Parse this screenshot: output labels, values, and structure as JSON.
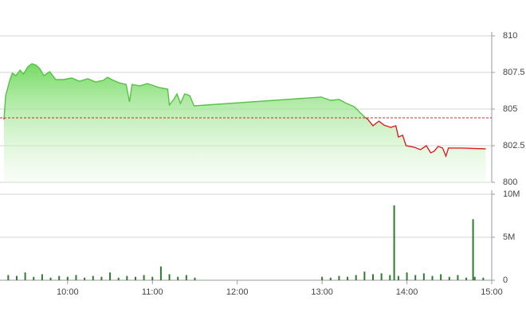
{
  "chart_data": [
    {
      "type": "area",
      "x": [
        9.25,
        9.27,
        9.32,
        9.35,
        9.39,
        9.44,
        9.48,
        9.53,
        9.58,
        9.63,
        9.67,
        9.72,
        9.79,
        9.86,
        9.95,
        10.05,
        10.14,
        10.24,
        10.33,
        10.42,
        10.47,
        10.52,
        10.61,
        10.69,
        10.73,
        10.76,
        10.85,
        10.94,
        11.08,
        11.18,
        11.2,
        11.25,
        11.29,
        11.33,
        11.38,
        11.44,
        11.49,
        12.99,
        13.1,
        13.2,
        13.29,
        13.38,
        13.48,
        13.54,
        13.6,
        13.67,
        13.73,
        13.81,
        13.87,
        13.9,
        13.95,
        13.99,
        14.09,
        14.16,
        14.23,
        14.28,
        14.32,
        14.37,
        14.42,
        14.46,
        14.49,
        14.65,
        14.93
      ],
      "values": [
        804.29,
        805.92,
        807.01,
        807.45,
        807.28,
        807.66,
        807.39,
        807.88,
        808.1,
        807.99,
        807.77,
        807.28,
        807.55,
        807.01,
        807.01,
        807.12,
        806.9,
        807.07,
        806.85,
        806.96,
        807.17,
        807.01,
        806.79,
        806.68,
        805.49,
        806.68,
        806.58,
        806.74,
        806.47,
        806.36,
        805.27,
        805.65,
        806.03,
        805.38,
        806.03,
        805.92,
        805.22,
        805.82,
        805.6,
        805.65,
        805.38,
        805.16,
        804.57,
        804.29,
        803.86,
        804.18,
        803.91,
        803.75,
        803.86,
        803.1,
        803.21,
        802.5,
        802.39,
        802.23,
        802.5,
        802.01,
        802.12,
        802.45,
        802.34,
        801.79,
        802.34,
        802.34,
        802.28
      ],
      "color": "#55c244",
      "down_color": "#e02020",
      "reference": 804.4,
      "xlim": [
        9.25,
        15
      ],
      "ylim": [
        800,
        810
      ],
      "yticks": [
        800,
        802.5,
        805,
        807.5,
        810
      ],
      "grid": true
    },
    {
      "type": "bar",
      "x": [
        9.3,
        9.4,
        9.5,
        9.6,
        9.7,
        9.8,
        9.9,
        10.0,
        10.1,
        10.2,
        10.3,
        10.4,
        10.5,
        10.6,
        10.7,
        10.8,
        10.9,
        11.0,
        11.1,
        11.2,
        11.3,
        11.4,
        11.5,
        13.0,
        13.1,
        13.2,
        13.3,
        13.4,
        13.5,
        13.6,
        13.7,
        13.8,
        13.85,
        13.9,
        14.0,
        14.1,
        14.2,
        14.3,
        14.4,
        14.5,
        14.6,
        14.7,
        14.78,
        14.8,
        14.9
      ],
      "values": [
        0.6,
        0.5,
        0.9,
        0.4,
        0.7,
        0.3,
        0.5,
        0.4,
        0.6,
        0.3,
        0.5,
        0.4,
        0.9,
        0.3,
        0.5,
        0.4,
        0.6,
        0.4,
        1.6,
        0.7,
        0.4,
        0.6,
        0.3,
        0.4,
        0.3,
        0.5,
        0.4,
        0.6,
        1.0,
        0.7,
        0.8,
        0.6,
        8.7,
        0.5,
        0.9,
        0.6,
        0.8,
        0.5,
        0.7,
        0.4,
        0.6,
        0.3,
        7.1,
        0.4,
        0.3
      ],
      "color": "#2d7d2d",
      "xlim": [
        9.25,
        15
      ],
      "xticks": [
        {
          "value": 10,
          "label": "10:00"
        },
        {
          "value": 11,
          "label": "11:00"
        },
        {
          "value": 12,
          "label": "12:00"
        },
        {
          "value": 13,
          "label": "13:00"
        },
        {
          "value": 14,
          "label": "14:00"
        },
        {
          "value": 15,
          "label": "15:00"
        }
      ],
      "ylim": [
        0,
        10
      ],
      "yticks": [
        0,
        {
          "value": 5,
          "label": "5M"
        },
        {
          "value": 10,
          "label": "10M"
        }
      ],
      "grid": true
    }
  ]
}
